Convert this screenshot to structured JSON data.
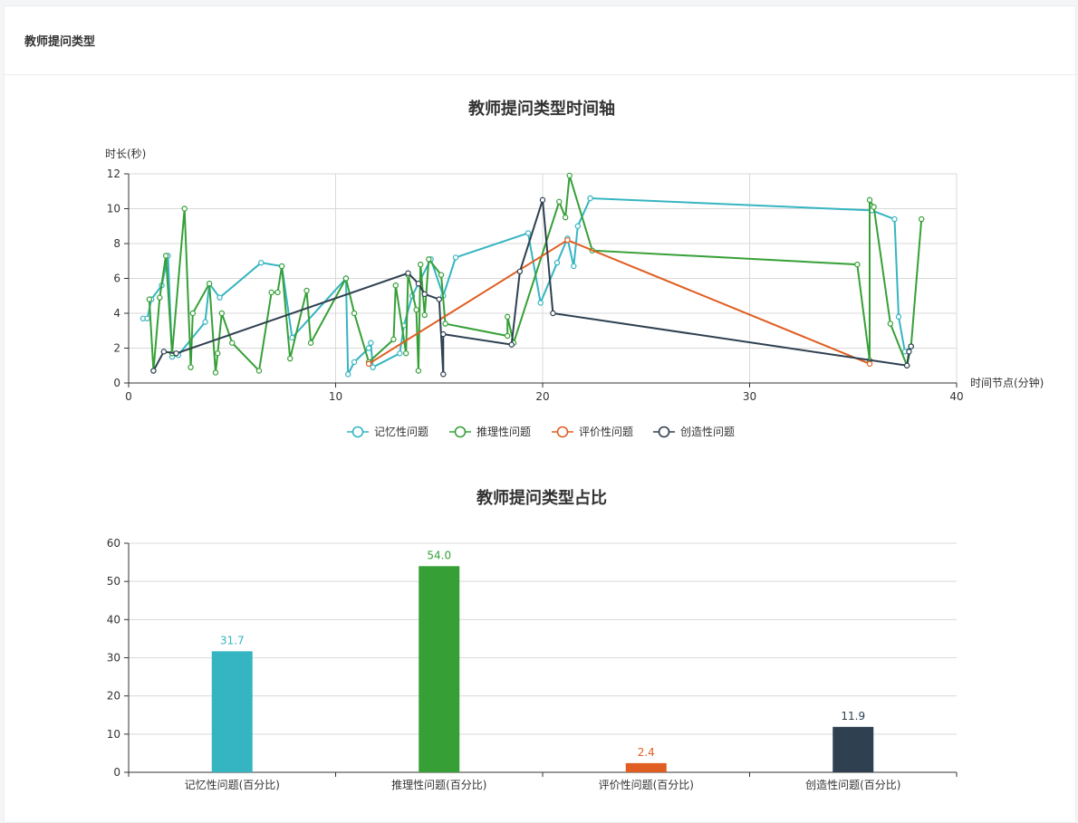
{
  "panel": {
    "title": "教师提问类型"
  },
  "chart_data": [
    {
      "type": "line",
      "title": "教师提问类型时间轴",
      "xlabel": "时间节点(分钟)",
      "ylabel": "时长(秒)",
      "xlim": [
        0,
        40
      ],
      "ylim": [
        0,
        12
      ],
      "x_ticks": [
        "0",
        "10",
        "20",
        "30",
        "40"
      ],
      "y_ticks": [
        "0",
        "2",
        "4",
        "6",
        "8",
        "10",
        "12"
      ],
      "grid": true,
      "legend_position": "bottom",
      "series": [
        {
          "name": "记忆性问题",
          "color": "#35b5c1",
          "points": [
            [
              0.7,
              3.7
            ],
            [
              0.9,
              3.7
            ],
            [
              1.1,
              4.8
            ],
            [
              1.6,
              5.6
            ],
            [
              1.9,
              7.3
            ],
            [
              2.1,
              1.5
            ],
            [
              2.4,
              1.6
            ],
            [
              3.7,
              3.5
            ],
            [
              3.9,
              5.7
            ],
            [
              4.4,
              4.9
            ],
            [
              6.4,
              6.9
            ],
            [
              7.4,
              6.7
            ],
            [
              7.9,
              2.6
            ],
            [
              10.5,
              6.0
            ],
            [
              10.6,
              0.5
            ],
            [
              10.9,
              1.2
            ],
            [
              11.6,
              2.0
            ],
            [
              11.7,
              2.3
            ],
            [
              11.8,
              0.9
            ],
            [
              13.1,
              1.7
            ],
            [
              13.3,
              3.3
            ],
            [
              13.7,
              5.0
            ],
            [
              14.6,
              7.1
            ],
            [
              15.2,
              5.0
            ],
            [
              15.8,
              7.2
            ],
            [
              19.3,
              8.6
            ],
            [
              19.9,
              4.6
            ],
            [
              20.7,
              6.9
            ],
            [
              21.2,
              8.3
            ],
            [
              21.5,
              6.7
            ],
            [
              21.7,
              9.0
            ],
            [
              22.3,
              10.6
            ],
            [
              35.9,
              9.9
            ],
            [
              37.0,
              9.4
            ],
            [
              37.2,
              3.8
            ],
            [
              37.5,
              1.8
            ],
            [
              37.8,
              2.1
            ]
          ]
        },
        {
          "name": "推理性问题",
          "color": "#36a037",
          "points": [
            [
              1.0,
              4.8
            ],
            [
              1.2,
              0.7
            ],
            [
              1.5,
              4.9
            ],
            [
              1.8,
              7.3
            ],
            [
              2.1,
              1.7
            ],
            [
              2.7,
              10.0
            ],
            [
              3.0,
              0.9
            ],
            [
              3.1,
              4.0
            ],
            [
              3.9,
              5.7
            ],
            [
              4.2,
              0.6
            ],
            [
              4.3,
              1.7
            ],
            [
              4.5,
              4.0
            ],
            [
              5.0,
              2.3
            ],
            [
              6.3,
              0.7
            ],
            [
              6.9,
              5.2
            ],
            [
              7.2,
              5.2
            ],
            [
              7.4,
              6.7
            ],
            [
              7.8,
              1.4
            ],
            [
              8.6,
              5.3
            ],
            [
              8.8,
              2.3
            ],
            [
              10.5,
              6.0
            ],
            [
              10.9,
              4.0
            ],
            [
              11.6,
              1.2
            ],
            [
              12.8,
              2.5
            ],
            [
              12.9,
              5.6
            ],
            [
              13.4,
              1.7
            ],
            [
              13.5,
              6.2
            ],
            [
              13.9,
              4.2
            ],
            [
              14.0,
              0.7
            ],
            [
              14.1,
              6.8
            ],
            [
              14.3,
              3.9
            ],
            [
              14.5,
              7.1
            ],
            [
              15.1,
              6.2
            ],
            [
              15.3,
              3.4
            ],
            [
              18.3,
              2.7
            ],
            [
              18.3,
              3.8
            ],
            [
              18.6,
              2.3
            ],
            [
              20.8,
              10.4
            ],
            [
              21.1,
              9.5
            ],
            [
              21.3,
              11.9
            ],
            [
              22.4,
              7.6
            ],
            [
              35.2,
              6.8
            ],
            [
              35.8,
              1.3
            ],
            [
              35.8,
              10.5
            ],
            [
              36.0,
              10.1
            ],
            [
              36.8,
              3.4
            ],
            [
              37.6,
              1.0
            ],
            [
              37.8,
              2.1
            ],
            [
              38.3,
              9.4
            ]
          ]
        },
        {
          "name": "评价性问题",
          "color": "#e05e22",
          "points": [
            [
              11.6,
              1.1
            ],
            [
              21.2,
              8.2
            ],
            [
              35.8,
              1.1
            ]
          ]
        },
        {
          "name": "创造性问题",
          "color": "#2f4050",
          "points": [
            [
              1.2,
              0.7
            ],
            [
              1.7,
              1.8
            ],
            [
              2.3,
              1.7
            ],
            [
              13.5,
              6.3
            ],
            [
              14.0,
              5.7
            ],
            [
              14.3,
              5.1
            ],
            [
              15.0,
              4.8
            ],
            [
              15.2,
              0.5
            ],
            [
              15.2,
              2.8
            ],
            [
              18.5,
              2.2
            ],
            [
              18.9,
              6.4
            ],
            [
              20.0,
              10.5
            ],
            [
              20.5,
              4.0
            ],
            [
              37.6,
              1.0
            ],
            [
              37.7,
              1.8
            ],
            [
              37.8,
              2.1
            ]
          ]
        }
      ]
    },
    {
      "type": "bar",
      "title": "教师提问类型占比",
      "categories": [
        "记忆性问题(百分比)",
        "推理性问题(百分比)",
        "评价性问题(百分比)",
        "创造性问题(百分比)"
      ],
      "values": [
        31.7,
        54.0,
        2.4,
        11.9
      ],
      "value_labels": [
        "31.7",
        "54.0",
        "2.4",
        "11.9"
      ],
      "colors": [
        "#35b5c1",
        "#36a037",
        "#e05e22",
        "#2f4050"
      ],
      "ylim": [
        0,
        60
      ],
      "y_ticks": [
        "0",
        "10",
        "20",
        "30",
        "40",
        "50",
        "60"
      ],
      "grid": true
    }
  ]
}
